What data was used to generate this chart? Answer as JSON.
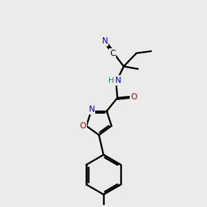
{
  "bg_color": "#ebebeb",
  "atom_colors": {
    "C": "#000000",
    "N": "#0000cc",
    "O": "#cc0000",
    "H": "#008080"
  },
  "bond_color": "#000000",
  "bond_width": 1.8,
  "fig_size": [
    3.0,
    3.0
  ],
  "dpi": 100
}
